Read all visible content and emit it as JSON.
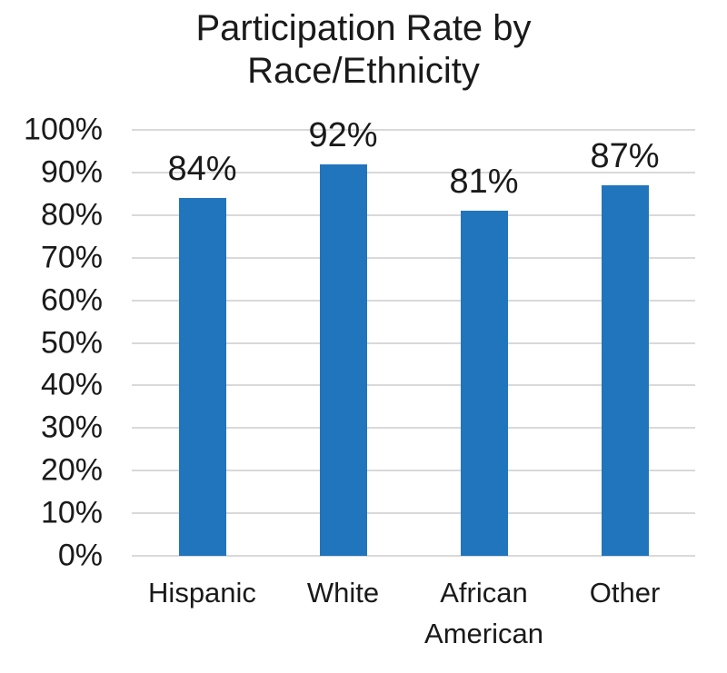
{
  "chart_data": {
    "type": "bar",
    "title": "Participation Rate by Race/Ethnicity",
    "title_lines": [
      "Participation Rate by",
      "Race/Ethnicity"
    ],
    "categories": [
      "Hispanic",
      "White",
      "African American",
      "Other"
    ],
    "values": [
      84,
      92,
      81,
      87
    ],
    "value_labels": [
      "84%",
      "92%",
      "81%",
      "87%"
    ],
    "xlabel": "",
    "ylabel": "",
    "ylim": [
      0,
      100
    ],
    "ytick_step": 10,
    "ytick_labels": [
      "0%",
      "10%",
      "20%",
      "30%",
      "40%",
      "50%",
      "60%",
      "70%",
      "80%",
      "90%",
      "100%"
    ],
    "grid": true,
    "legend": "none",
    "bar_color": "#2175BD",
    "gridline_color": "#D9D9D9",
    "text_color": "#1a1a1a",
    "background_color": "#ffffff"
  }
}
